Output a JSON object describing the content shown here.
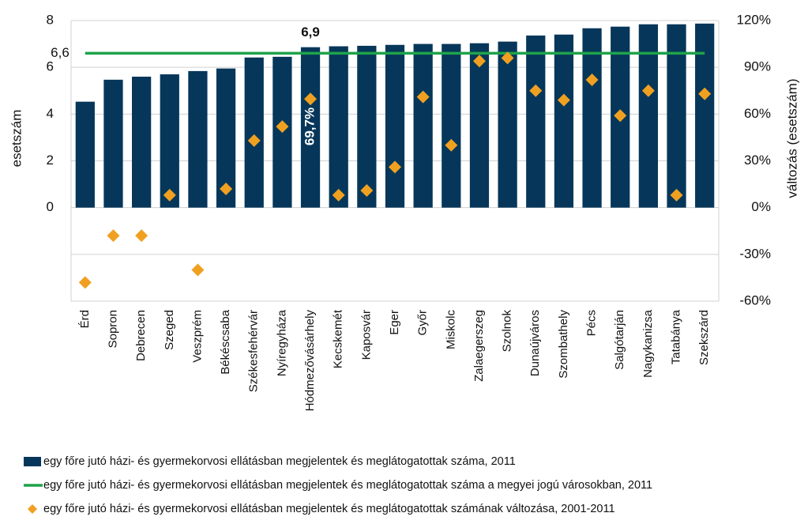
{
  "chart_data": {
    "type": "bar",
    "categories": [
      "Érd",
      "Sopron",
      "Debrecen",
      "Szeged",
      "Veszprém",
      "Békéscsaba",
      "Székesfehérvár",
      "Nyíregyháza",
      "Hódmezővásárhely",
      "Kecskemét",
      "Kaposvár",
      "Eger",
      "Győr",
      "Miskolc",
      "Zalaegerszeg",
      "Szolnok",
      "Dunaújváros",
      "Szombathely",
      "Pécs",
      "Salgótarján",
      "Nagykanizsa",
      "Tatabánya",
      "Szekszárd"
    ],
    "ylabel": "esetszám",
    "y2label": "változás (esetszám)",
    "ylim": [
      -4,
      8
    ],
    "yticks": [
      0,
      2,
      4,
      6,
      8
    ],
    "y2lim": [
      -60,
      120
    ],
    "y2ticks": [
      {
        "value": -60,
        "label": "-60%"
      },
      {
        "value": -30,
        "label": "-30%"
      },
      {
        "value": 0,
        "label": "0%"
      },
      {
        "value": 30,
        "label": "30%"
      },
      {
        "value": 60,
        "label": "60%"
      },
      {
        "value": 90,
        "label": "90%"
      },
      {
        "value": 120,
        "label": "120%"
      }
    ],
    "grid": true,
    "series": [
      {
        "name": "egy főre jutó házi- és gyermekorvosi ellátásban megjelentek és meglátogatottak száma, 2011",
        "type": "bar",
        "color": "#06375a",
        "values": [
          4.53,
          5.47,
          5.6,
          5.7,
          5.84,
          5.95,
          6.42,
          6.45,
          6.86,
          6.9,
          6.92,
          6.96,
          7.0,
          7.0,
          7.03,
          7.1,
          7.36,
          7.4,
          7.67,
          7.74,
          7.84,
          7.84,
          7.87
        ],
        "value_labels": [
          null,
          null,
          null,
          null,
          null,
          null,
          null,
          null,
          "6,9",
          null,
          null,
          null,
          null,
          null,
          null,
          null,
          null,
          null,
          null,
          null,
          null,
          null,
          null
        ]
      },
      {
        "name": "egy főre jutó házi- és gyermekorvosi ellátásban megjelentek és meglátogatottak száma a megyei jogú városokban, 2011",
        "type": "line",
        "color": "#1fa34a",
        "values": [
          6.6,
          6.6,
          6.6,
          6.6,
          6.6,
          6.6,
          6.6,
          6.6,
          6.6,
          6.6,
          6.6,
          6.6,
          6.6,
          6.6,
          6.6,
          6.6,
          6.6,
          6.6,
          6.6,
          6.6,
          6.6,
          6.6,
          6.6
        ],
        "value_labels": [
          "6,6",
          null,
          null,
          null,
          null,
          null,
          null,
          null,
          null,
          null,
          null,
          null,
          null,
          null,
          null,
          null,
          null,
          null,
          null,
          null,
          null,
          null,
          null
        ]
      },
      {
        "name": "egy főre jutó házi- és gyermekorvosi ellátásban megjelentek és meglátogatottak számának változása, 2001-2011",
        "type": "scatter",
        "color": "#f0a020",
        "axis": "y2",
        "values": [
          -48,
          -18,
          -18,
          8,
          -40,
          12,
          43,
          52,
          69.7,
          8,
          11,
          26,
          71,
          40,
          94,
          96,
          75,
          69,
          82,
          59,
          75,
          8,
          73
        ],
        "value_labels": [
          null,
          null,
          null,
          null,
          null,
          null,
          null,
          null,
          "69,7%",
          null,
          null,
          null,
          null,
          null,
          null,
          null,
          null,
          null,
          null,
          null,
          null,
          null,
          null
        ]
      }
    ]
  }
}
